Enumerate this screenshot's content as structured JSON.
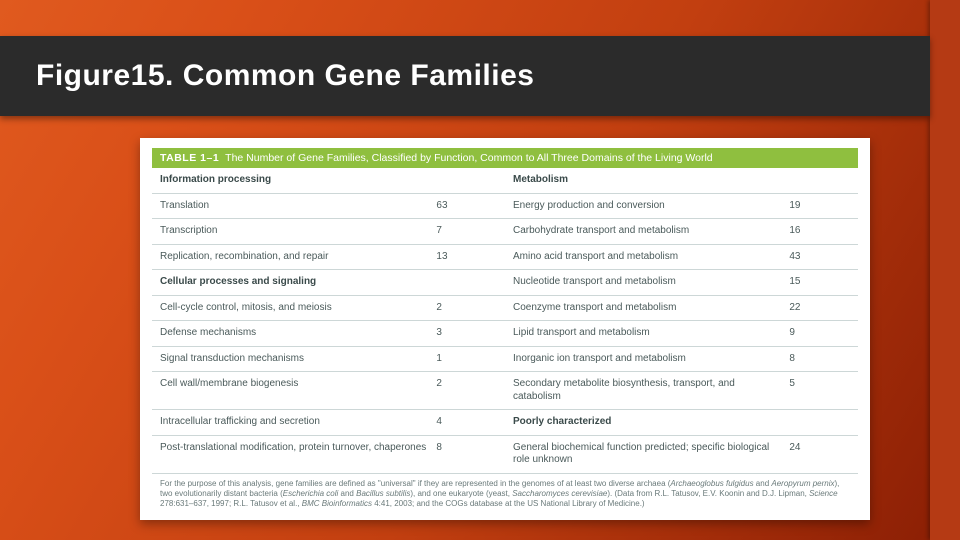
{
  "slide": {
    "title": "Figure15. Common Gene Families",
    "bg_gradient": [
      "#e05a1f",
      "#d94f18",
      "#c23f10",
      "#8a1e04"
    ],
    "title_bar_bg": "#2b2b2b",
    "accent_color": "#b53a14",
    "paper_bg": "#ffffff"
  },
  "table": {
    "header_bg": "#8fbf3f",
    "header_label": "TABLE 1–1",
    "header_text": "The Number of Gene Families, Classified by Function, Common to All Three Domains of the Living World",
    "left_section1": "Information processing",
    "right_section1": "Metabolism",
    "left_section2": "Cellular processes and signaling",
    "right_section2": "Poorly characterized",
    "rows": [
      {
        "l": "Translation",
        "lv": "63",
        "r": "Energy production and conversion",
        "rv": "19"
      },
      {
        "l": "Transcription",
        "lv": "7",
        "r": "Carbohydrate transport and metabolism",
        "rv": "16"
      },
      {
        "l": "Replication, recombination, and repair",
        "lv": "13",
        "r": "Amino acid transport and metabolism",
        "rv": "43"
      },
      {
        "l_section": true,
        "l": "Cellular processes and signaling",
        "lv": "",
        "r": "Nucleotide transport and metabolism",
        "rv": "15"
      },
      {
        "l": "Cell-cycle control, mitosis, and meiosis",
        "lv": "2",
        "r": "Coenzyme transport and metabolism",
        "rv": "22"
      },
      {
        "l": "Defense mechanisms",
        "lv": "3",
        "r": "Lipid transport and metabolism",
        "rv": "9"
      },
      {
        "l": "Signal transduction mechanisms",
        "lv": "1",
        "r": "Inorganic ion transport and metabolism",
        "rv": "8"
      },
      {
        "l": "Cell wall/membrane biogenesis",
        "lv": "2",
        "r": "Secondary metabolite biosynthesis, transport, and catabolism",
        "rv": "5"
      },
      {
        "l": "Intracellular trafficking and secretion",
        "lv": "4",
        "r_section": true,
        "r": "Poorly characterized",
        "rv": ""
      },
      {
        "l": "Post-translational modification, protein turnover, chaperones",
        "lv": "8",
        "r": "General biochemical function predicted; specific biological role unknown",
        "rv": "24"
      }
    ],
    "footnote_plain_1": "For the purpose of this analysis, gene families are defined as \"universal\" if they are represented in the genomes of at least two diverse archaea (",
    "footnote_italic_1": "Archaeoglobus fulgidus",
    "footnote_plain_2": " and ",
    "footnote_italic_2": "Aeropyrum pernix",
    "footnote_plain_3": "), two evolutionarily distant bacteria (",
    "footnote_italic_3": "Escherichia coli",
    "footnote_plain_4": " and ",
    "footnote_italic_4": "Bacillus subtilis",
    "footnote_plain_5": "), and one eukaryote (yeast, ",
    "footnote_italic_5": "Saccharomyces cerevisiae",
    "footnote_plain_6": "). (Data from R.L. Tatusov, E.V. Koonin and D.J. Lipman, ",
    "footnote_italic_6": "Science",
    "footnote_plain_7": " 278:631–637, 1997; R.L. Tatusov et al., ",
    "footnote_italic_7": "BMC Bioinformatics",
    "footnote_plain_8": " 4:41, 2003; and the COGs database at the US National Library of Medicine.)"
  }
}
